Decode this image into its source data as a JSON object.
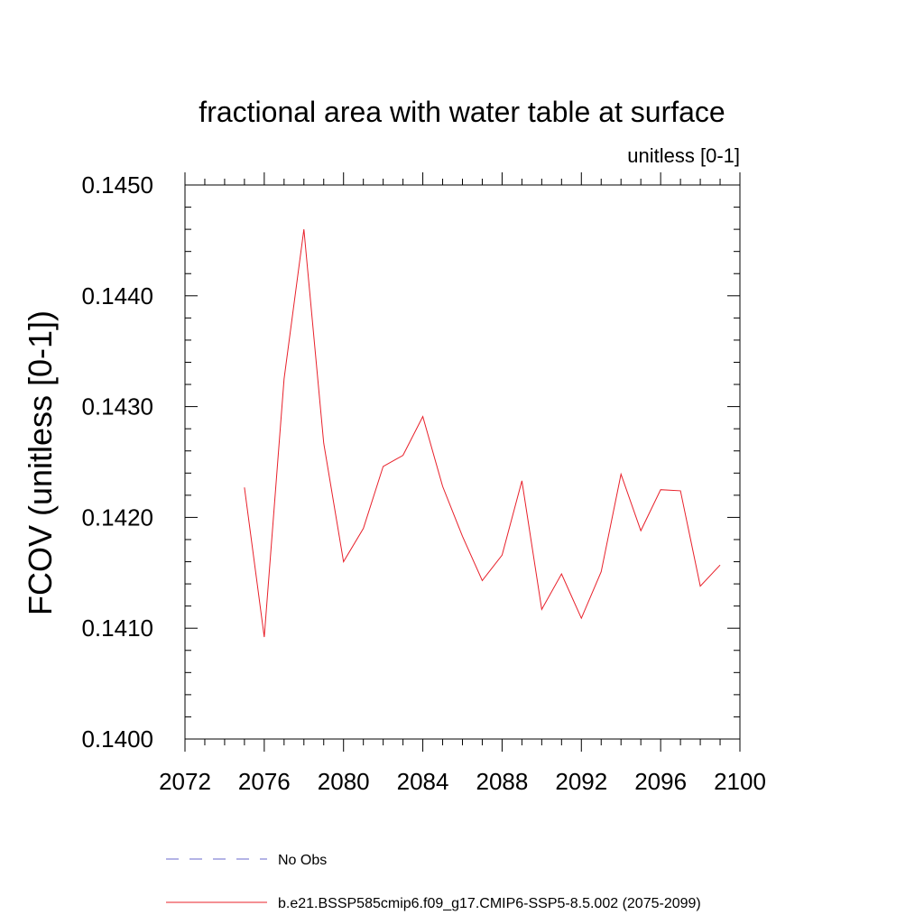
{
  "chart_data": {
    "type": "line",
    "title": "fractional area with water table at surface",
    "subtitle": "unitless [0-1]",
    "xlabel": "",
    "ylabel": "FCOV  (unitless [0-1])",
    "xlim": [
      2072,
      2100
    ],
    "ylim": [
      0.14,
      0.145
    ],
    "x_ticks": [
      "2072",
      "2076",
      "2080",
      "2084",
      "2088",
      "2092",
      "2096",
      "2100"
    ],
    "y_ticks": [
      "0.1400",
      "0.1410",
      "0.1420",
      "0.1430",
      "0.1440",
      "0.1450"
    ],
    "grid": false,
    "legend_position": "bottom",
    "series": [
      {
        "name": "No Obs",
        "color": "#6a6acd",
        "style": "dashed",
        "x": [],
        "values": []
      },
      {
        "name": "b.e21.BSSP585cmip6.f09_g17.CMIP6-SSP5-8.5.002 (2075-2099)",
        "color": "#e8202a",
        "style": "solid",
        "x": [
          2075,
          2076,
          2077,
          2078,
          2079,
          2080,
          2081,
          2082,
          2083,
          2084,
          2085,
          2086,
          2087,
          2088,
          2089,
          2090,
          2091,
          2092,
          2093,
          2094,
          2095,
          2096,
          2097,
          2098,
          2099
        ],
        "values": [
          0.14227,
          0.14092,
          0.14325,
          0.1446,
          0.14267,
          0.1416,
          0.1419,
          0.14246,
          0.14256,
          0.14291,
          0.14228,
          0.14183,
          0.14143,
          0.14166,
          0.14233,
          0.14117,
          0.14149,
          0.14109,
          0.14151,
          0.14239,
          0.14188,
          0.14225,
          0.14224,
          0.14138,
          0.14157
        ]
      }
    ]
  }
}
